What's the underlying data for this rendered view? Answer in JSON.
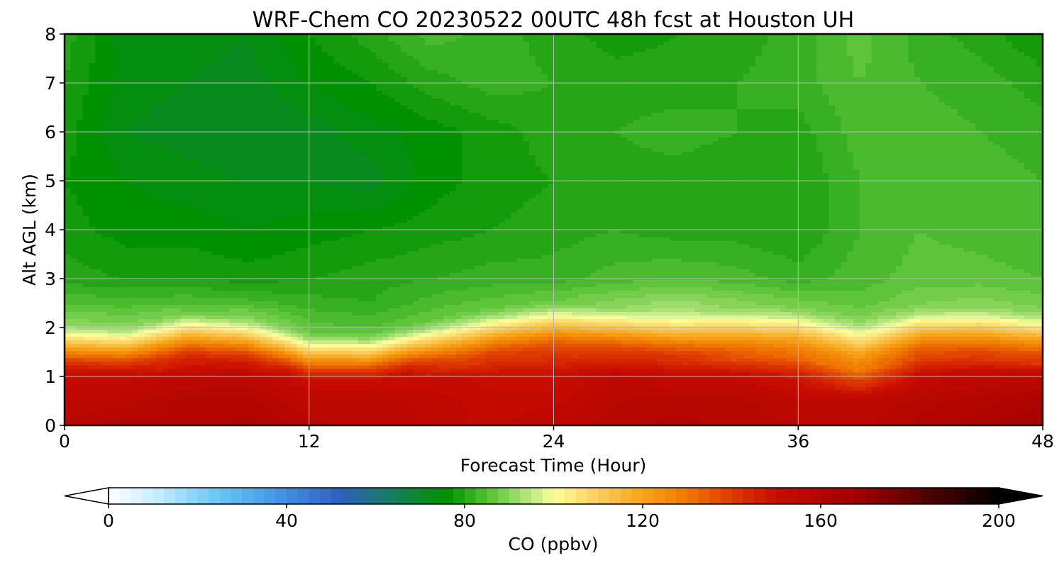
{
  "chart_data": {
    "type": "heatmap",
    "subtype": "filled-contour time-height cross section",
    "title": "WRF-Chem CO  20230522 00UTC 48h fcst at Houston UH",
    "xlabel": "Forecast Time (Hour)",
    "ylabel": "Alt AGL (km)",
    "xlim": [
      0,
      48
    ],
    "ylim": [
      0,
      8
    ],
    "xticks": [
      0,
      12,
      24,
      36,
      48
    ],
    "yticks": [
      0,
      1,
      2,
      3,
      4,
      5,
      6,
      7,
      8
    ],
    "grid": true,
    "x": [
      0,
      3,
      6,
      9,
      12,
      15,
      18,
      21,
      24,
      27,
      30,
      33,
      36,
      39,
      42,
      45,
      48
    ],
    "y": [
      0,
      0.5,
      1.0,
      1.5,
      2.0,
      2.5,
      3.0,
      4.0,
      5.0,
      6.0,
      7.0,
      8.0
    ],
    "boundary_layer_top_km": [
      1.6,
      1.55,
      1.85,
      1.75,
      1.4,
      1.4,
      1.65,
      1.9,
      2.05,
      1.95,
      1.85,
      1.95,
      1.95,
      1.7,
      1.95,
      1.95,
      1.85
    ],
    "values": [
      [
        158,
        160,
        159,
        162,
        158,
        156,
        155,
        152,
        156,
        158,
        160,
        158,
        157,
        156,
        160,
        162,
        166
      ],
      [
        155,
        156,
        160,
        160,
        155,
        156,
        154,
        152,
        152,
        157,
        158,
        158,
        155,
        155,
        158,
        160,
        162
      ],
      [
        152,
        152,
        154,
        155,
        150,
        150,
        152,
        150,
        150,
        155,
        152,
        152,
        148,
        135,
        152,
        155,
        156
      ],
      [
        128,
        124,
        142,
        140,
        108,
        106,
        122,
        138,
        140,
        140,
        138,
        132,
        128,
        114,
        135,
        136,
        130
      ],
      [
        92,
        90,
        96,
        95,
        86,
        85,
        88,
        94,
        104,
        100,
        98,
        100,
        99,
        92,
        100,
        100,
        97
      ],
      [
        85,
        84,
        85,
        84,
        82,
        81,
        84,
        86,
        88,
        90,
        92,
        90,
        88,
        86,
        89,
        90,
        88
      ],
      [
        80,
        79,
        79,
        78,
        79,
        80,
        81,
        82,
        82,
        84,
        85,
        84,
        82,
        84,
        86,
        86,
        85
      ],
      [
        78,
        76,
        76,
        75,
        76,
        77,
        78,
        79,
        80,
        81,
        80,
        80,
        79,
        83,
        85,
        84,
        83
      ],
      [
        77,
        75,
        74,
        73,
        73,
        72,
        76,
        78,
        79,
        80,
        80,
        79,
        79,
        83,
        84,
        84,
        83
      ],
      [
        78,
        73,
        72,
        71,
        72,
        74,
        76,
        78,
        80,
        81,
        82,
        81,
        80,
        84,
        84,
        83,
        82
      ],
      [
        79,
        74,
        73,
        72,
        75,
        77,
        80,
        82,
        81,
        80,
        80,
        81,
        82,
        85,
        83,
        82,
        80
      ],
      [
        80,
        74,
        74,
        73,
        77,
        80,
        84,
        82,
        80,
        78,
        79,
        80,
        82,
        86,
        82,
        80,
        77
      ]
    ],
    "colorbar": {
      "label": "CO  (ppbv)",
      "min": 0,
      "max": 200,
      "ticks": [
        0,
        40,
        80,
        120,
        160,
        200
      ],
      "extend": "both",
      "orientation": "horizontal",
      "colors": [
        {
          "v": 0,
          "c": "#ffffff"
        },
        {
          "v": 10,
          "c": "#cdeeff"
        },
        {
          "v": 24,
          "c": "#6cc8f5"
        },
        {
          "v": 40,
          "c": "#3f8fe0"
        },
        {
          "v": 52,
          "c": "#2f5fc0"
        },
        {
          "v": 62,
          "c": "#1d7a6c"
        },
        {
          "v": 76,
          "c": "#009100"
        },
        {
          "v": 86,
          "c": "#5ec43a"
        },
        {
          "v": 96,
          "c": "#c8ec8c"
        },
        {
          "v": 100,
          "c": "#ffff99"
        },
        {
          "v": 108,
          "c": "#fbd56a"
        },
        {
          "v": 120,
          "c": "#f7a41a"
        },
        {
          "v": 130,
          "c": "#f07800"
        },
        {
          "v": 140,
          "c": "#de3a00"
        },
        {
          "v": 150,
          "c": "#c80c00"
        },
        {
          "v": 168,
          "c": "#a00000"
        },
        {
          "v": 182,
          "c": "#5a0000"
        },
        {
          "v": 200,
          "c": "#000000"
        }
      ]
    }
  }
}
